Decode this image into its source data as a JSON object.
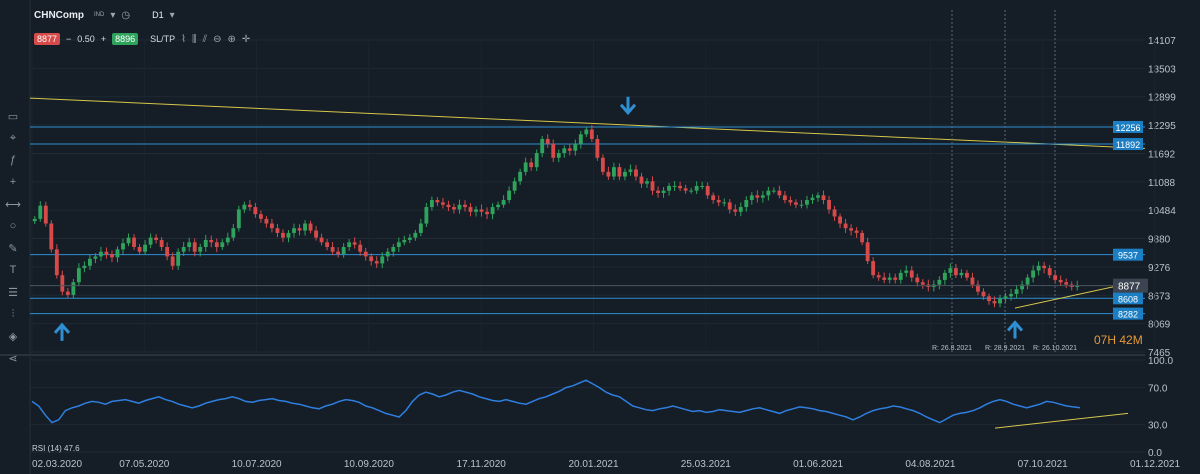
{
  "toolbar": {
    "symbol": "CHNComp",
    "exchange": "IND",
    "timeframe": "D1",
    "bid": "8877",
    "minus": "−",
    "lot": "0.50",
    "plus": "+",
    "ask": "8896",
    "sltp": "SL/TP"
  },
  "timer": {
    "hours": "07H",
    "minutes": "42M"
  },
  "rsi_label": "RSI (14) 47.6",
  "chart_data": [
    {
      "type": "candlestick",
      "title": "CHNComp D1",
      "x_ticks": [
        "02.03.2020",
        "07.05.2020",
        "10.07.2020",
        "10.09.2020",
        "17.11.2020",
        "20.01.2021",
        "25.03.2021",
        "01.06.2021",
        "04.08.2021",
        "07.10.2021",
        "01.12.2021"
      ],
      "y_ticks": [
        14107,
        13503,
        12899,
        12295,
        11692,
        11088,
        10484,
        9880,
        9276,
        8673,
        8069,
        7465
      ],
      "ylim": [
        7465,
        14107
      ],
      "current_price": 8877,
      "closes": [
        10300,
        10580,
        10200,
        9650,
        9100,
        8750,
        8680,
        8950,
        9250,
        9300,
        9450,
        9500,
        9600,
        9550,
        9480,
        9650,
        9780,
        9900,
        9700,
        9600,
        9750,
        9900,
        9850,
        9700,
        9500,
        9300,
        9600,
        9700,
        9800,
        9600,
        9700,
        9850,
        9800,
        9700,
        9800,
        9900,
        10100,
        10500,
        10600,
        10550,
        10400,
        10300,
        10200,
        10100,
        10000,
        9900,
        10000,
        10100,
        10050,
        10200,
        10050,
        9900,
        9800,
        9700,
        9600,
        9550,
        9700,
        9800,
        9750,
        9600,
        9500,
        9400,
        9350,
        9500,
        9600,
        9700,
        9800,
        9850,
        9900,
        10000,
        10200,
        10550,
        10700,
        10650,
        10600,
        10550,
        10500,
        10600,
        10550,
        10450,
        10500,
        10450,
        10400,
        10550,
        10600,
        10700,
        10900,
        11100,
        11300,
        11500,
        11400,
        11700,
        12000,
        11900,
        11600,
        11700,
        11800,
        11750,
        11900,
        12100,
        12200,
        12000,
        11600,
        11300,
        11200,
        11400,
        11200,
        11300,
        11350,
        11200,
        11050,
        11100,
        10900,
        10850,
        10900,
        11000,
        11000,
        10950,
        10900,
        10900,
        11000,
        11000,
        10800,
        10700,
        10650,
        10650,
        10500,
        10450,
        10550,
        10700,
        10800,
        10750,
        10800,
        10900,
        10900,
        10800,
        10700,
        10650,
        10600,
        10600,
        10700,
        10750,
        10800,
        10700,
        10500,
        10350,
        10200,
        10100,
        10050,
        10000,
        9800,
        9400,
        9100,
        9050,
        9000,
        9050,
        9000,
        9150,
        9200,
        9050,
        8950,
        8900,
        8850,
        8900,
        9000,
        9150,
        9250,
        9100,
        9150,
        9050,
        8900,
        8750,
        8650,
        8550,
        8500,
        8600,
        8650,
        8700,
        8800,
        8900,
        9050,
        9200,
        9300,
        9250,
        9100,
        9000,
        8950,
        8900,
        8850,
        8880
      ],
      "horizontal_levels": [
        12256,
        11892,
        9537,
        8608,
        8282
      ],
      "level_labels": [
        "12256",
        "11892",
        "9537",
        "8608",
        "8282"
      ],
      "vertical_annotations": [
        "R: 26.8.2021",
        "R: 28.9.2021",
        "R: 26.10.2021"
      ],
      "arrow_markers": [
        "up",
        "down",
        "up"
      ],
      "colors": {
        "up": "#2fa35c",
        "down": "#d64a4a",
        "level": "#2f8fd3",
        "trend": "#d7c74a",
        "background": "#151d26"
      }
    },
    {
      "type": "line",
      "title": "RSI (14) 47.6",
      "series": [
        {
          "name": "RSI (14)",
          "values": [
            55,
            50,
            40,
            32,
            35,
            45,
            48,
            50,
            53,
            55,
            54,
            52,
            55,
            56,
            57,
            55,
            53,
            56,
            58,
            60,
            57,
            55,
            52,
            50,
            48,
            50,
            53,
            55,
            57,
            58,
            60,
            58,
            55,
            54,
            56,
            57,
            58,
            56,
            55,
            53,
            52,
            50,
            48,
            47,
            50,
            52,
            55,
            57,
            56,
            54,
            50,
            48,
            45,
            42,
            40,
            38,
            45,
            55,
            62,
            65,
            63,
            60,
            62,
            65,
            67,
            65,
            63,
            60,
            58,
            56,
            55,
            57,
            55,
            53,
            52,
            55,
            58,
            60,
            63,
            66,
            70,
            72,
            75,
            78,
            74,
            70,
            65,
            62,
            60,
            55,
            50,
            48,
            46,
            45,
            47,
            48,
            50,
            48,
            46,
            44,
            45,
            43,
            44,
            46,
            45,
            44,
            43,
            45,
            47,
            48,
            46,
            44,
            42,
            45,
            47,
            49,
            48,
            47,
            45,
            44,
            42,
            40,
            38,
            35,
            38,
            42,
            45,
            47,
            48,
            50,
            49,
            47,
            45,
            42,
            38,
            35,
            32,
            36,
            40,
            42,
            43,
            45,
            48,
            52,
            55,
            57,
            55,
            52,
            50,
            48,
            50,
            52,
            55,
            54,
            52,
            50,
            49,
            48
          ]
        }
      ],
      "y_ticks": [
        100.0,
        70.0,
        30.0,
        0.0
      ],
      "ylim": [
        0,
        100
      ]
    }
  ]
}
